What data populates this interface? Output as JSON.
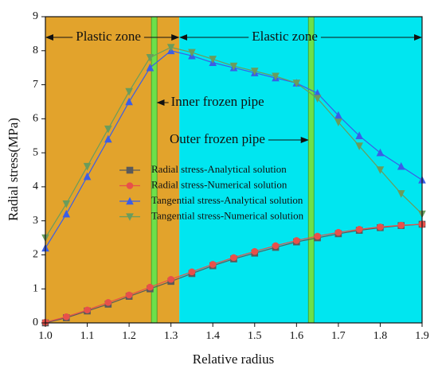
{
  "chart_data": {
    "type": "line",
    "x_label": "Relative radius",
    "y_label": "Radial stress(MPa)",
    "xlim": [
      1.0,
      1.9
    ],
    "xticks": [
      {
        "value": 1.0,
        "label": "1.0"
      },
      1.1,
      1.2,
      1.3,
      1.4,
      1.5,
      1.6,
      1.7,
      1.8,
      1.9
    ],
    "ylim": [
      0,
      9
    ],
    "yticks": [
      0,
      1,
      2,
      3,
      4,
      5,
      6,
      7,
      8,
      9
    ],
    "legend": "center",
    "zones": [
      {
        "label": "Plastic zone",
        "x": [
          1.0,
          1.32
        ],
        "color": "#e2a32c"
      },
      {
        "label": "Elastic zone",
        "x": [
          1.32,
          1.9
        ],
        "color": "#00e6f0"
      }
    ],
    "pipes": [
      {
        "label": "Inner frozen pipe",
        "x": 1.26,
        "color": "#6de04a"
      },
      {
        "label": "Outer frozen pipe",
        "x": 1.635,
        "color": "#6de04a"
      }
    ],
    "x": [
      1.0,
      1.05,
      1.1,
      1.15,
      1.2,
      1.25,
      1.3,
      1.35,
      1.4,
      1.45,
      1.5,
      1.55,
      1.6,
      1.65,
      1.7,
      1.75,
      1.8,
      1.85,
      1.9
    ],
    "series": [
      {
        "name": "Radial stress-Analytical solution",
        "color": "#5a5a5a",
        "marker": "square",
        "values": [
          0,
          0.15,
          0.35,
          0.55,
          0.78,
          1.0,
          1.22,
          1.45,
          1.68,
          1.88,
          2.05,
          2.22,
          2.38,
          2.5,
          2.62,
          2.72,
          2.8,
          2.86,
          2.9
        ]
      },
      {
        "name": "Radial stress-Numerical solution",
        "color": "#e8504a",
        "marker": "circle",
        "values": [
          0.02,
          0.18,
          0.38,
          0.6,
          0.82,
          1.05,
          1.28,
          1.5,
          1.72,
          1.92,
          2.1,
          2.27,
          2.42,
          2.55,
          2.66,
          2.75,
          2.82,
          2.87,
          2.9
        ]
      },
      {
        "name": "Tangential stress-Analytical solution",
        "color": "#3b5ee6",
        "marker": "triangle-up",
        "values": [
          2.2,
          3.2,
          4.3,
          5.4,
          6.5,
          7.5,
          8.0,
          7.85,
          7.65,
          7.5,
          7.35,
          7.2,
          7.05,
          6.75,
          6.1,
          5.5,
          5.0,
          4.6,
          4.2
        ]
      },
      {
        "name": "Tangential stress-Numerical solution",
        "color": "#6a9c5c",
        "marker": "triangle-down",
        "values": [
          2.5,
          3.5,
          4.6,
          5.7,
          6.8,
          7.8,
          8.1,
          7.95,
          7.75,
          7.55,
          7.4,
          7.25,
          7.05,
          6.6,
          5.9,
          5.2,
          4.5,
          3.8,
          3.2
        ]
      }
    ]
  }
}
